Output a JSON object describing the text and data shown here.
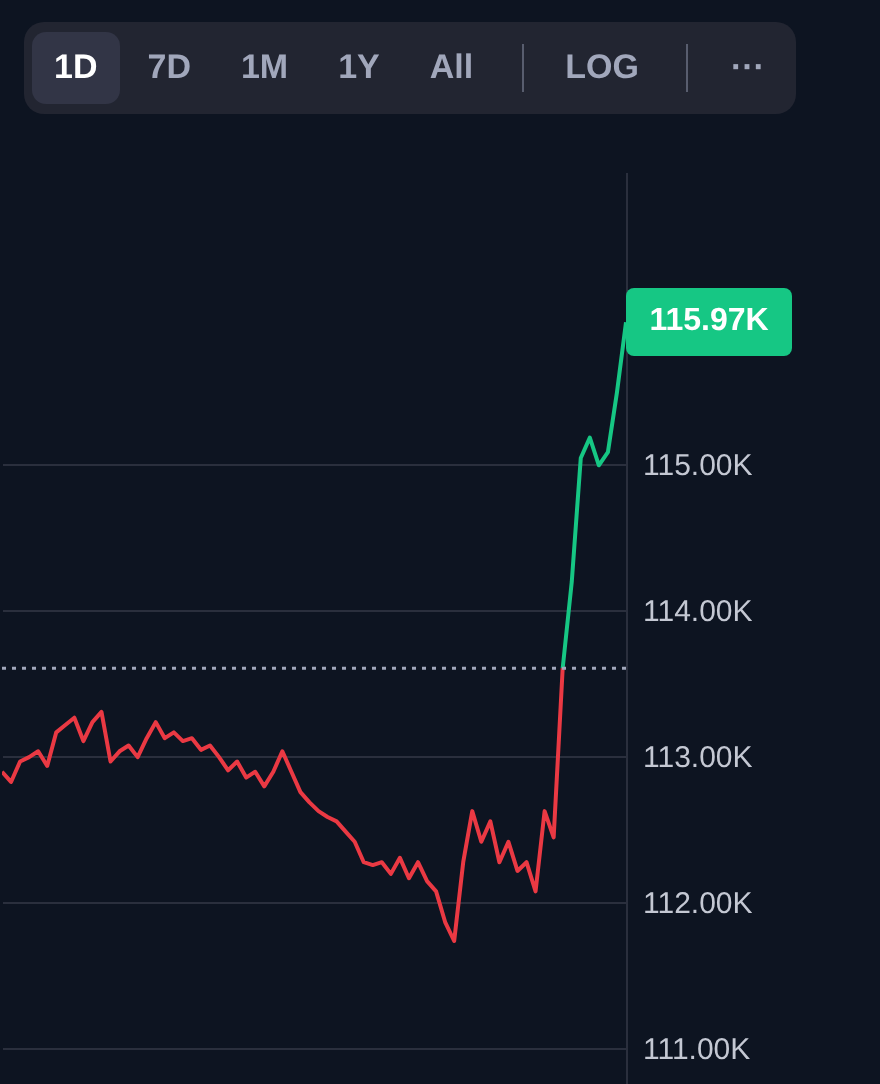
{
  "chart_data": {
    "type": "line",
    "categories": [
      null,
      null,
      null,
      null,
      null,
      null,
      null,
      null,
      null,
      null,
      null,
      null,
      null,
      null,
      null,
      null,
      null,
      null,
      null,
      null,
      null,
      null,
      null,
      null,
      null,
      null,
      null,
      null,
      null,
      null,
      null,
      null,
      null,
      null,
      null,
      null,
      null,
      null,
      null,
      null,
      null,
      null,
      null,
      null,
      null,
      null,
      null,
      null,
      null,
      null,
      null,
      null,
      null,
      null,
      null,
      null,
      null,
      null,
      null,
      null,
      null,
      null,
      null,
      null,
      null,
      null,
      null,
      null,
      null,
      null
    ],
    "series": [
      {
        "color": "#ea3943",
        "values": [
          112.89,
          112.82,
          112.96,
          112.99,
          113.03,
          112.93,
          113.16,
          113.21,
          113.26,
          113.1,
          113.23,
          113.3,
          112.96,
          113.03,
          113.07,
          112.99,
          113.12,
          113.23,
          113.12,
          113.16,
          113.1,
          113.12,
          113.04,
          113.07,
          112.99,
          112.9,
          112.96,
          112.85,
          112.89,
          112.79,
          112.89,
          113.03,
          112.89,
          112.75,
          112.68,
          112.62,
          112.58,
          112.55,
          112.48,
          112.41,
          112.27,
          112.25,
          112.27,
          112.19,
          112.3,
          112.16,
          112.27,
          112.14,
          112.07,
          111.86,
          111.73,
          112.27,
          112.62,
          112.41,
          112.55,
          112.27,
          112.41,
          112.21,
          112.27,
          112.07,
          112.62,
          112.44,
          113.6,
          null,
          null,
          null,
          null,
          null,
          null,
          null
        ]
      },
      {
        "color": "#16c784",
        "values": [
          null,
          null,
          null,
          null,
          null,
          null,
          null,
          null,
          null,
          null,
          null,
          null,
          null,
          null,
          null,
          null,
          null,
          null,
          null,
          null,
          null,
          null,
          null,
          null,
          null,
          null,
          null,
          null,
          null,
          null,
          null,
          null,
          null,
          null,
          null,
          null,
          null,
          null,
          null,
          null,
          null,
          null,
          null,
          null,
          null,
          null,
          null,
          null,
          null,
          null,
          null,
          null,
          null,
          null,
          null,
          null,
          null,
          null,
          null,
          null,
          null,
          null,
          113.6,
          114.19,
          115.04,
          115.18,
          114.99,
          115.08,
          115.49,
          115.97
        ]
      }
    ],
    "ylim": [
      110.75,
      117
    ],
    "yticks": [
      {
        "value": 111,
        "label": "111.00K"
      },
      {
        "value": 112,
        "label": "112.00K"
      },
      {
        "value": 113,
        "label": "113.00K"
      },
      {
        "value": 114,
        "label": "114.00K"
      },
      {
        "value": 115,
        "label": "115.00K"
      }
    ],
    "grid": "y",
    "tick_labels": "y",
    "ref_lines": [
      {
        "axis": "y",
        "value": 113.6,
        "color": "#a1a7bb",
        "line_style": "dotted"
      }
    ],
    "annotations": [
      "115.97K",
      "1D",
      "7D",
      "1M",
      "1Y",
      "All",
      "LOG",
      "···"
    ]
  }
}
